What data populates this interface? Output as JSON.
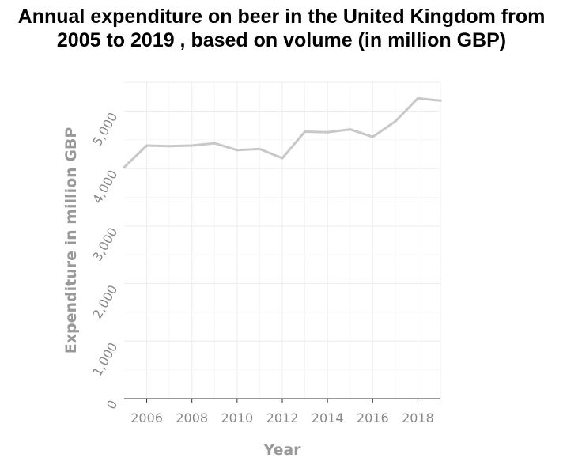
{
  "chart_data": {
    "type": "line",
    "title": "Annual expenditure on beer in the United Kingdom from 2005 to 2019 , based on volume (in million GBP)",
    "xlabel": "Year",
    "ylabel": "Expenditure in million GBP",
    "xlim": [
      2005,
      2019
    ],
    "ylim": [
      0,
      5500
    ],
    "x_ticks": [
      "2006",
      "2008",
      "2010",
      "2012",
      "2014",
      "2016",
      "2018"
    ],
    "y_ticks": [
      "0",
      "1,000",
      "2,000",
      "3,000",
      "4,000",
      "5,000"
    ],
    "grid": true,
    "line_color": "#c8c8c8",
    "x": [
      2005,
      2006,
      2007,
      2008,
      2009,
      2010,
      2011,
      2012,
      2013,
      2014,
      2015,
      2016,
      2017,
      2018,
      2019
    ],
    "series": [
      {
        "values": [
          4020,
          4400,
          4390,
          4400,
          4440,
          4320,
          4340,
          4180,
          4640,
          4630,
          4680,
          4550,
          4820,
          5220,
          5180
        ]
      }
    ]
  }
}
